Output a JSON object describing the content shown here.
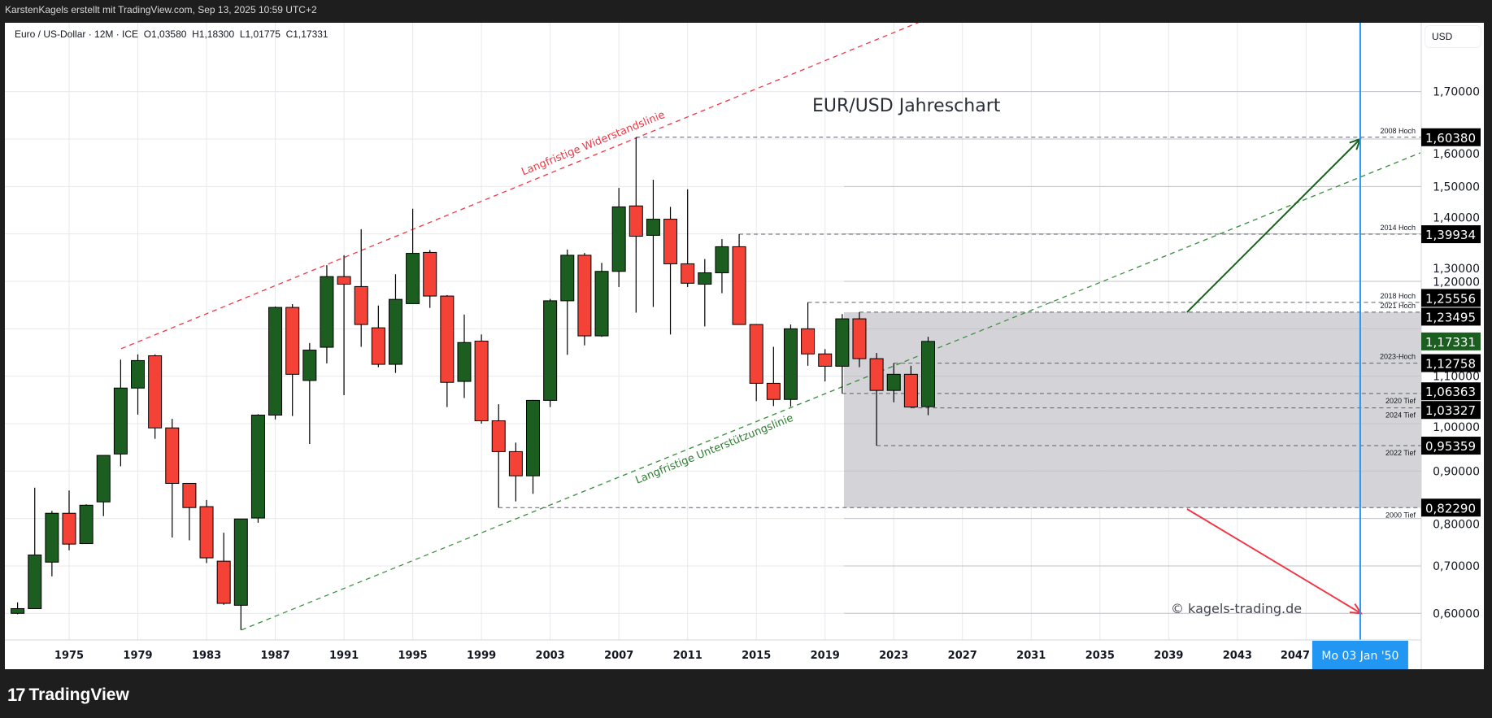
{
  "header": {
    "caption": "KarstenKagels erstellt mit TradingView.com, Sep 13, 2025 10:59 UTC+2"
  },
  "legend": {
    "symbol": "Euro / US-Dollar · 12M · ICE",
    "open": "O1,03580",
    "high": "H1,18300",
    "low": "L1,01775",
    "close": "C1,17331"
  },
  "price_axis": {
    "currency": "USD"
  },
  "footer": {
    "brand": "TradingView",
    "logo_icon": "tradingview-logo-icon"
  },
  "colors": {
    "up": "#1b5e20",
    "down": "#f44336",
    "resistance": "#f23645",
    "support": "#388e3c",
    "crosshair": "#2196f3",
    "zone": "#d1d1d6",
    "last_price": "#1b5e20"
  },
  "chart_data": {
    "type": "candlestick",
    "title": "EUR/USD Jahreschart",
    "watermark": "© kagels-trading.de",
    "ylim": [
      0.55,
      1.85
    ],
    "y_ticks": [
      "0,60000",
      "0,70000",
      "0,80000",
      "0,90000",
      "1,00000",
      "1,10000",
      "1,20000",
      "1,30000",
      "1,40000",
      "1,50000",
      "1,60000",
      "1,70000"
    ],
    "y_tick_values": [
      0.6,
      0.7,
      0.8,
      0.9,
      1.0,
      1.1,
      1.2,
      1.3,
      1.4,
      1.5,
      1.6,
      1.7
    ],
    "x_ticks": [
      "1975",
      "1979",
      "1983",
      "1987",
      "1991",
      "1995",
      "1999",
      "2003",
      "2007",
      "2011",
      "2015",
      "2019",
      "2023",
      "2027",
      "2031",
      "2035",
      "2039",
      "2043",
      "2047"
    ],
    "grid": true,
    "candles": [
      [
        1972,
        0.6,
        0.623,
        0.598,
        0.61
      ],
      [
        1973,
        0.61,
        0.865,
        0.61,
        0.723
      ],
      [
        1974,
        0.708,
        0.816,
        0.678,
        0.811
      ],
      [
        1975,
        0.811,
        0.859,
        0.733,
        0.746
      ],
      [
        1976,
        0.747,
        0.83,
        0.747,
        0.828
      ],
      [
        1977,
        0.835,
        0.933,
        0.805,
        0.933
      ],
      [
        1978,
        0.936,
        1.135,
        0.91,
        1.075
      ],
      [
        1979,
        1.075,
        1.146,
        1.019,
        1.133
      ],
      [
        1980,
        1.143,
        1.146,
        0.968,
        0.991
      ],
      [
        1981,
        0.991,
        1.01,
        0.76,
        0.874
      ],
      [
        1982,
        0.874,
        0.874,
        0.754,
        0.823
      ],
      [
        1983,
        0.825,
        0.839,
        0.706,
        0.717
      ],
      [
        1984,
        0.71,
        0.77,
        0.618,
        0.621
      ],
      [
        1985,
        0.617,
        0.799,
        0.565,
        0.799
      ],
      [
        1986,
        0.801,
        1.02,
        0.791,
        1.018
      ],
      [
        1987,
        1.018,
        1.247,
        1.009,
        1.245
      ],
      [
        1988,
        1.245,
        1.252,
        1.016,
        1.104
      ],
      [
        1989,
        1.091,
        1.17,
        0.957,
        1.155
      ],
      [
        1990,
        1.161,
        1.334,
        1.127,
        1.31
      ],
      [
        1991,
        1.31,
        1.355,
        1.06,
        1.294
      ],
      [
        1992,
        1.289,
        1.41,
        1.162,
        1.209
      ],
      [
        1993,
        1.202,
        1.249,
        1.119,
        1.125
      ],
      [
        1994,
        1.125,
        1.315,
        1.107,
        1.262
      ],
      [
        1995,
        1.253,
        1.453,
        1.253,
        1.359
      ],
      [
        1996,
        1.361,
        1.366,
        1.244,
        1.269
      ],
      [
        1997,
        1.269,
        1.271,
        1.035,
        1.087
      ],
      [
        1998,
        1.089,
        1.23,
        1.054,
        1.171
      ],
      [
        1999,
        1.174,
        1.188,
        1.0,
        1.006
      ],
      [
        2000,
        1.006,
        1.041,
        0.8229,
        0.941
      ],
      [
        2001,
        0.941,
        0.96,
        0.836,
        0.89
      ],
      [
        2002,
        0.89,
        1.05,
        0.852,
        1.049
      ],
      [
        2003,
        1.049,
        1.263,
        1.035,
        1.259
      ],
      [
        2004,
        1.259,
        1.367,
        1.145,
        1.355
      ],
      [
        2005,
        1.355,
        1.36,
        1.165,
        1.185
      ],
      [
        2006,
        1.185,
        1.339,
        1.183,
        1.321
      ],
      [
        2007,
        1.321,
        1.497,
        1.288,
        1.457
      ],
      [
        2008,
        1.459,
        1.6038,
        1.234,
        1.395
      ],
      [
        2009,
        1.397,
        1.514,
        1.246,
        1.431
      ],
      [
        2010,
        1.431,
        1.457,
        1.188,
        1.337
      ],
      [
        2011,
        1.337,
        1.494,
        1.288,
        1.296
      ],
      [
        2012,
        1.294,
        1.347,
        1.205,
        1.318
      ],
      [
        2013,
        1.318,
        1.389,
        1.275,
        1.373
      ],
      [
        2014,
        1.373,
        1.39934,
        1.209,
        1.209
      ],
      [
        2015,
        1.209,
        1.21,
        1.0475,
        1.085
      ],
      [
        2016,
        1.085,
        1.162,
        1.037,
        1.051
      ],
      [
        2017,
        1.051,
        1.209,
        1.036,
        1.2
      ],
      [
        2018,
        1.2,
        1.25556,
        1.122,
        1.147
      ],
      [
        2019,
        1.147,
        1.157,
        1.089,
        1.121
      ],
      [
        2020,
        1.121,
        1.231,
        1.06363,
        1.221
      ],
      [
        2021,
        1.221,
        1.23495,
        1.119,
        1.137
      ],
      [
        2022,
        1.137,
        1.149,
        0.95359,
        1.07
      ],
      [
        2023,
        1.07,
        1.12758,
        1.045,
        1.104
      ],
      [
        2024,
        1.104,
        1.122,
        1.03327,
        1.035
      ],
      [
        2025,
        1.0358,
        1.183,
        1.01775,
        1.17331
      ]
    ],
    "levels": [
      {
        "price": 1.6038,
        "badge": "1,60380",
        "label": "2008 Hoch",
        "from": 2008,
        "pos": "above"
      },
      {
        "price": 1.39934,
        "badge": "1,39934",
        "label": "2014 Hoch",
        "from": 2014,
        "pos": "above"
      },
      {
        "price": 1.25556,
        "badge": "1,25556",
        "label": "2018 Hoch",
        "from": 2018,
        "pos": "above"
      },
      {
        "price": 1.23495,
        "badge": "1,23495",
        "label": "2021 Hoch",
        "from": 2021,
        "pos": "above"
      },
      {
        "price": 1.12758,
        "badge": "1,12758",
        "label": "2023-Hoch",
        "from": 2023,
        "pos": "above"
      },
      {
        "price": 1.06363,
        "badge": "1,06363",
        "label": "2020 Tief",
        "from": 2020,
        "pos": "below"
      },
      {
        "price": 1.03327,
        "badge": "1,03327",
        "label": "2024 Tief",
        "from": 2024,
        "pos": "below"
      },
      {
        "price": 0.95359,
        "badge": "0,95359",
        "label": "2022 Tief",
        "from": 2022,
        "pos": "below"
      },
      {
        "price": 0.8229,
        "badge": "0,82290",
        "label": "2000 Tief",
        "from": 2000,
        "pos": "below"
      }
    ],
    "last_price": {
      "price": 1.17331,
      "badge": "1,17331"
    },
    "zone": {
      "from": 2020.1,
      "top": 1.23495,
      "bottom": 0.8229
    },
    "resistance_line": {
      "label": "Langfristige Widerstandslinie",
      "p1": [
        1978.03,
        1.158
      ],
      "p2": [
        2025.26,
        1.858
      ]
    },
    "support_line": {
      "label": "Langfristige Unterstützungslinie",
      "p1": [
        1985.03,
        0.565
      ],
      "p2": [
        2053.65,
        1.571
      ]
    },
    "up_arrow": {
      "p1": [
        2040.07,
        1.235
      ],
      "p2": [
        2050.15,
        1.6
      ]
    },
    "down_arrow": {
      "p1": [
        2040.07,
        0.82
      ],
      "p2": [
        2050.2,
        0.6
      ]
    },
    "crosshair": {
      "year": 2050.15,
      "label": "Mo 03 Jan '50"
    }
  }
}
